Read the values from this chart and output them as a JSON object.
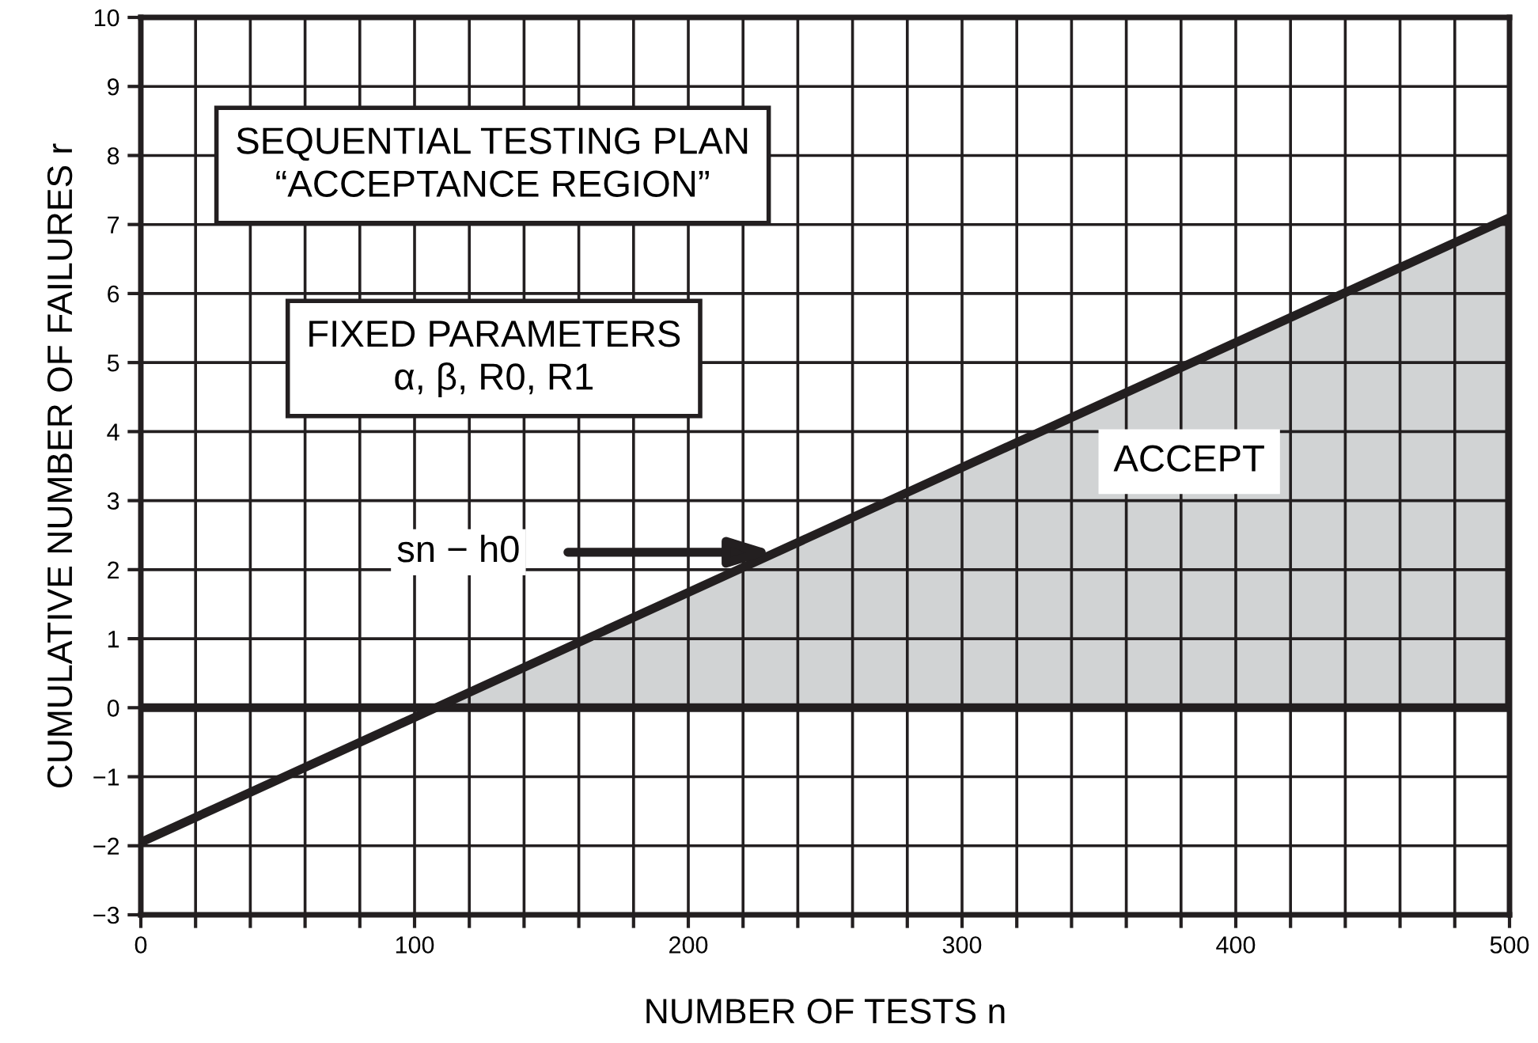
{
  "chart_data": {
    "type": "line",
    "xlabel": "NUMBER OF TESTS n",
    "ylabel": "CUMULATIVE NUMBER OF FAILURES r",
    "series": [
      {
        "x": [
          0,
          500
        ],
        "values": [
          -1.95,
          7.1
        ],
        "color": "#231f20"
      },
      {
        "x": [
          500,
          500
        ],
        "values": [
          0,
          7.1
        ],
        "color": "#231f20"
      },
      {
        "type": "area",
        "x": [
          108,
          500
        ],
        "values": [
          0,
          7.1
        ],
        "color": "#d1d3d4"
      }
    ],
    "ref_lines": [
      {
        "axis": "y",
        "value": 0,
        "color": "#231f20"
      }
    ],
    "annotations": [
      "SEQUENTIAL TESTING PLAN\n“ACCEPTANCE REGION”",
      "FIXED PARAMETERS\nα, β, R0, R1",
      "sn − h0",
      "ACCEPT"
    ],
    "xlim": [
      0,
      500
    ],
    "ylim": [
      -3,
      10
    ],
    "xticks": [
      0,
      {
        "value": 20,
        "label": null
      },
      {
        "value": 40,
        "label": null
      },
      {
        "value": 60,
        "label": null
      },
      {
        "value": 80,
        "label": null
      },
      100,
      {
        "value": 120,
        "label": null
      },
      {
        "value": 140,
        "label": null
      },
      {
        "value": 160,
        "label": null
      },
      {
        "value": 180,
        "label": null
      },
      200,
      {
        "value": 220,
        "label": null
      },
      {
        "value": 240,
        "label": null
      },
      {
        "value": 260,
        "label": null
      },
      {
        "value": 280,
        "label": null
      },
      300,
      {
        "value": 320,
        "label": null
      },
      {
        "value": 340,
        "label": null
      },
      {
        "value": 360,
        "label": null
      },
      {
        "value": 380,
        "label": null
      },
      400,
      {
        "value": 420,
        "label": null
      },
      {
        "value": 440,
        "label": null
      },
      {
        "value": 460,
        "label": null
      },
      {
        "value": 480,
        "label": null
      },
      500
    ],
    "yticks": [
      {
        "value": -3,
        "label": "−3"
      },
      {
        "value": -2,
        "label": "−2"
      },
      {
        "value": -1,
        "label": "−1"
      },
      0,
      1,
      2,
      3,
      4,
      5,
      6,
      7,
      8,
      9,
      10
    ],
    "grid": true,
    "legend": false
  }
}
